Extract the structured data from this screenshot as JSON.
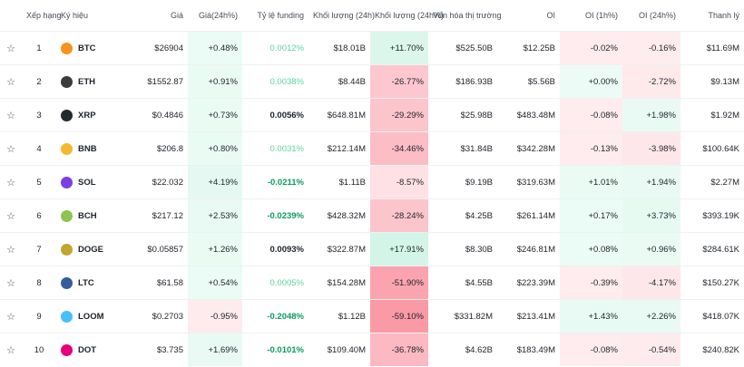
{
  "table": {
    "headers": [
      "Xếp hạng",
      "Ký hiệu",
      "Giá",
      "Giá(24h%)",
      "Tỷ lệ funding",
      "Khối lượng (24h)",
      "Khối lượng (24h%)",
      "Vốn hóa thị trường",
      "OI",
      "OI (1h%)",
      "OI (24h%)",
      "Thanh lý"
    ],
    "rows": [
      [
        1,
        "BTC",
        "$26904",
        "+0.48%",
        "0.0012%",
        "$18.01B",
        "+11.70%",
        "$525.50B",
        "$12.25B",
        "-0.02%",
        "-0.16%",
        "$11.69M"
      ],
      [
        2,
        "ETH",
        "$1552.87",
        "+0.91%",
        "0.0038%",
        "$8.44B",
        "-26.77%",
        "$186.93B",
        "$5.56B",
        "+0.00%",
        "-2.72%",
        "$9.13M"
      ],
      [
        3,
        "XRP",
        "$0.4846",
        "+0.73%",
        "0.0056%",
        "$648.81M",
        "-29.29%",
        "$25.98B",
        "$483.48M",
        "-0.08%",
        "+1.98%",
        "$1.92M"
      ],
      [
        4,
        "BNB",
        "$206.8",
        "+0.80%",
        "0.0031%",
        "$212.14M",
        "-34.46%",
        "$31.84B",
        "$342.28M",
        "-0.13%",
        "-3.98%",
        "$100.64K"
      ],
      [
        5,
        "SOL",
        "$22.032",
        "+4.19%",
        "-0.0211%",
        "$1.11B",
        "-8.57%",
        "$9.19B",
        "$319.63M",
        "+1.01%",
        "+1.94%",
        "$2.27M"
      ],
      [
        6,
        "BCH",
        "$217.12",
        "+2.53%",
        "-0.0239%",
        "$428.32M",
        "-28.24%",
        "$4.25B",
        "$261.14M",
        "+0.17%",
        "+3.73%",
        "$393.19K"
      ],
      [
        7,
        "DOGE",
        "$0.05857",
        "+1.26%",
        "0.0093%",
        "$322.87M",
        "+17.91%",
        "$8.30B",
        "$246.81M",
        "+0.08%",
        "+0.96%",
        "$284.61K"
      ],
      [
        8,
        "LTC",
        "$61.58",
        "+0.54%",
        "0.0005%",
        "$154.28M",
        "-51.90%",
        "$4.55B",
        "$223.39M",
        "-0.39%",
        "-4.17%",
        "$150.27K"
      ],
      [
        9,
        "LOOM",
        "$0.2703",
        "-0.95%",
        "-0.2048%",
        "$1.12B",
        "-59.10%",
        "$331.82M",
        "$213.41M",
        "+1.43%",
        "+2.26%",
        "$418.07K"
      ],
      [
        10,
        "DOT",
        "$3.735",
        "+1.69%",
        "-0.0101%",
        "$109.40M",
        "-36.78%",
        "$4.62B",
        "$183.49M",
        "-0.08%",
        "-0.54%",
        "$240.82K"
      ]
    ]
  }
}
